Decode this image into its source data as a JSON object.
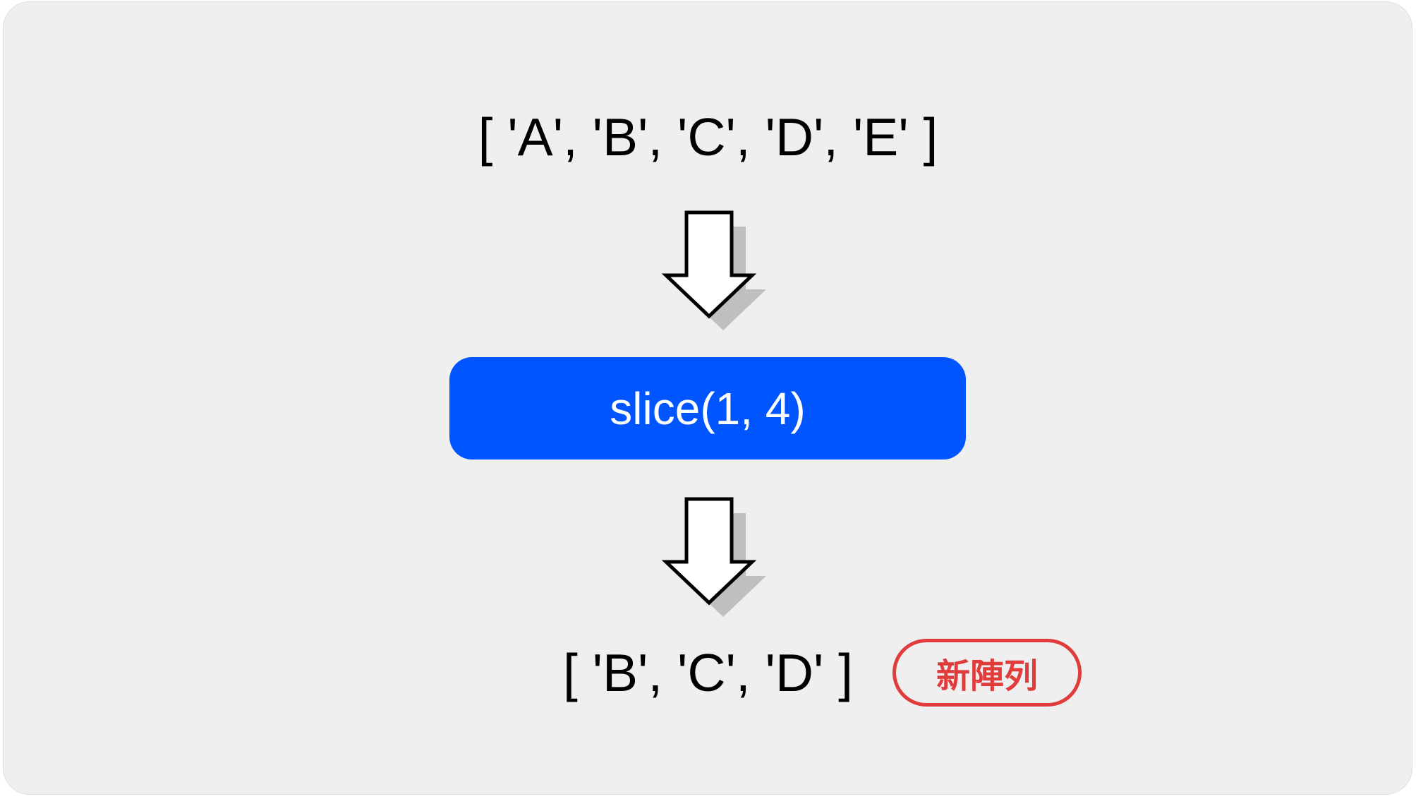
{
  "diagram": {
    "input": {
      "array": "[ 'A', 'B', 'C', 'D', 'E' ]"
    },
    "operation": {
      "label": "slice(1, 4)"
    },
    "output": {
      "array": "[ 'B', 'C', 'D' ]",
      "badge": "新陣列"
    }
  },
  "icons": {
    "flow_arrow": "down-arrow-icon"
  },
  "colors": {
    "panel_background": "#efefef",
    "text": "#000000",
    "method_box": "#0055ff",
    "method_text": "#ffffff",
    "badge": "#e03c3c",
    "arrow_fill": "#ffffff",
    "arrow_outline": "#000000",
    "arrow_shadow": "#bfbfbf"
  }
}
